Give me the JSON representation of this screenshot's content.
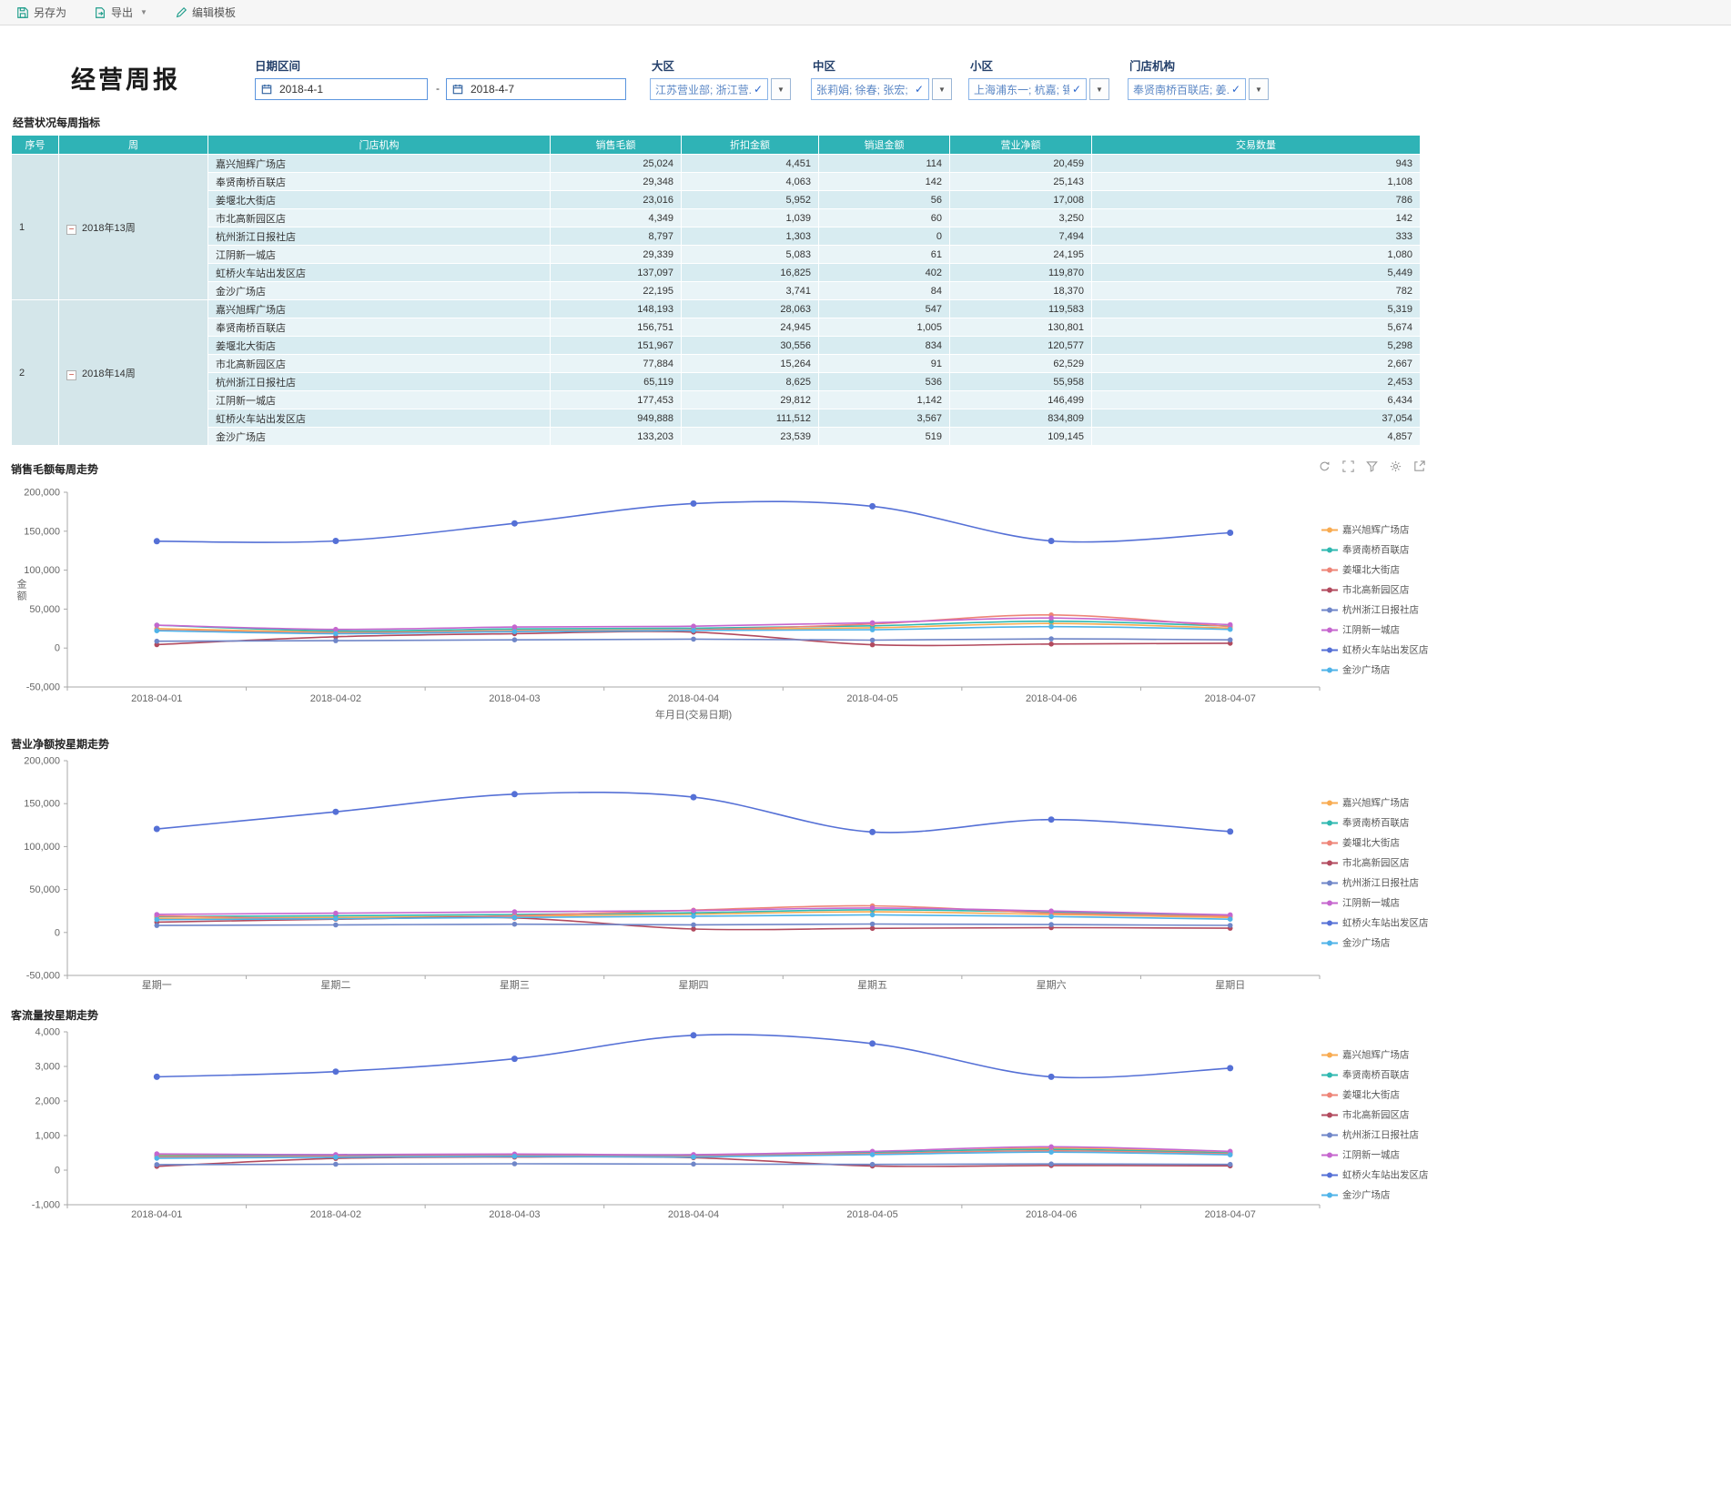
{
  "toolbar": {
    "save_as": "另存为",
    "export": "导出",
    "edit_template": "编辑模板"
  },
  "header": {
    "title": "经营周报",
    "filters": {
      "date_range_label": "日期区间",
      "date_from": "2018-4-1",
      "date_to": "2018-4-7",
      "date_separator": "-",
      "region_label": "大区",
      "region_value": "江苏营业部; 浙江营...",
      "midzone_label": "中区",
      "midzone_value": "张莉娟; 徐春; 张宏; ...",
      "subzone_label": "小区",
      "subzone_value": "上海浦东一; 杭嘉; 锡...",
      "store_label": "门店机构",
      "store_value": "奉贤南桥百联店; 姜..."
    }
  },
  "table": {
    "title": "经营状况每周指标",
    "collapse_icon": "−",
    "columns": [
      "序号",
      "周",
      "门店机构",
      "销售毛额",
      "折扣金额",
      "销退金额",
      "营业净额",
      "交易数量"
    ],
    "groups": [
      {
        "index": "1",
        "week": "2018年13周",
        "rows": [
          {
            "store": "嘉兴旭辉广场店",
            "gross": "25,024",
            "discount": "4,451",
            "returns": "114",
            "net": "20,459",
            "txns": "943"
          },
          {
            "store": "奉贤南桥百联店",
            "gross": "29,348",
            "discount": "4,063",
            "returns": "142",
            "net": "25,143",
            "txns": "1,108"
          },
          {
            "store": "姜堰北大街店",
            "gross": "23,016",
            "discount": "5,952",
            "returns": "56",
            "net": "17,008",
            "txns": "786"
          },
          {
            "store": "市北高新园区店",
            "gross": "4,349",
            "discount": "1,039",
            "returns": "60",
            "net": "3,250",
            "txns": "142"
          },
          {
            "store": "杭州浙江日报社店",
            "gross": "8,797",
            "discount": "1,303",
            "returns": "0",
            "net": "7,494",
            "txns": "333"
          },
          {
            "store": "江阴新一城店",
            "gross": "29,339",
            "discount": "5,083",
            "returns": "61",
            "net": "24,195",
            "txns": "1,080"
          },
          {
            "store": "虹桥火车站出发区店",
            "gross": "137,097",
            "discount": "16,825",
            "returns": "402",
            "net": "119,870",
            "txns": "5,449"
          },
          {
            "store": "金沙广场店",
            "gross": "22,195",
            "discount": "3,741",
            "returns": "84",
            "net": "18,370",
            "txns": "782"
          }
        ]
      },
      {
        "index": "2",
        "week": "2018年14周",
        "rows": [
          {
            "store": "嘉兴旭辉广场店",
            "gross": "148,193",
            "discount": "28,063",
            "returns": "547",
            "net": "119,583",
            "txns": "5,319"
          },
          {
            "store": "奉贤南桥百联店",
            "gross": "156,751",
            "discount": "24,945",
            "returns": "1,005",
            "net": "130,801",
            "txns": "5,674"
          },
          {
            "store": "姜堰北大街店",
            "gross": "151,967",
            "discount": "30,556",
            "returns": "834",
            "net": "120,577",
            "txns": "5,298"
          },
          {
            "store": "市北高新园区店",
            "gross": "77,884",
            "discount": "15,264",
            "returns": "91",
            "net": "62,529",
            "txns": "2,667"
          },
          {
            "store": "杭州浙江日报社店",
            "gross": "65,119",
            "discount": "8,625",
            "returns": "536",
            "net": "55,958",
            "txns": "2,453"
          },
          {
            "store": "江阴新一城店",
            "gross": "177,453",
            "discount": "29,812",
            "returns": "1,142",
            "net": "146,499",
            "txns": "6,434"
          },
          {
            "store": "虹桥火车站出发区店",
            "gross": "949,888",
            "discount": "111,512",
            "returns": "3,567",
            "net": "834,809",
            "txns": "37,054"
          },
          {
            "store": "金沙广场店",
            "gross": "133,203",
            "discount": "23,539",
            "returns": "519",
            "net": "109,145",
            "txns": "4,857"
          }
        ]
      }
    ]
  },
  "chart_data": [
    {
      "type": "line",
      "title": "销售毛额每周走势",
      "xlabel": "年月日(交易日期)",
      "ylabel": "金额",
      "x": [
        "2018-04-01",
        "2018-04-02",
        "2018-04-03",
        "2018-04-04",
        "2018-04-05",
        "2018-04-06",
        "2018-04-07"
      ],
      "ylim": [
        -50000,
        200000
      ],
      "ytick_step": 50000,
      "grid": false,
      "legend_position": "right",
      "series": [
        {
          "name": "嘉兴旭辉广场店",
          "color": "#f8ab51",
          "point_radius": 2.8,
          "values": [
            25024,
            20500,
            22500,
            23500,
            26000,
            31500,
            25500
          ]
        },
        {
          "name": "奉贤南桥百联店",
          "color": "#2fb8b0",
          "point_radius": 2.8,
          "values": [
            29348,
            22000,
            24500,
            25500,
            28500,
            34500,
            28000
          ]
        },
        {
          "name": "姜堰北大街店",
          "color": "#ee8477",
          "point_radius": 2.8,
          "values": [
            23016,
            19500,
            22000,
            23500,
            31000,
            42500,
            27500
          ]
        },
        {
          "name": "市北高新园区店",
          "color": "#b24a5e",
          "point_radius": 2.8,
          "values": [
            4349,
            14500,
            18500,
            20500,
            4200,
            5100,
            6200
          ]
        },
        {
          "name": "杭州浙江日报社店",
          "color": "#6f86c8",
          "point_radius": 2.8,
          "values": [
            8797,
            9500,
            10500,
            11500,
            10200,
            11800,
            10500
          ]
        },
        {
          "name": "江阴新一城店",
          "color": "#c566ce",
          "point_radius": 2.8,
          "values": [
            29339,
            24000,
            27000,
            28000,
            32500,
            38500,
            30000
          ]
        },
        {
          "name": "虹桥火车站出发区店",
          "color": "#5570d6",
          "point_radius": 3.5,
          "values": [
            137097,
            137500,
            160000,
            185500,
            182000,
            137500,
            148000
          ]
        },
        {
          "name": "金沙广场店",
          "color": "#4fb3e8",
          "point_radius": 2.8,
          "values": [
            22195,
            18500,
            21000,
            22500,
            23500,
            27500,
            24000
          ]
        }
      ]
    },
    {
      "type": "line",
      "title": "营业净额按星期走势",
      "xlabel": "",
      "ylabel": "",
      "x": [
        "星期一",
        "星期二",
        "星期三",
        "星期四",
        "星期五",
        "星期六",
        "星期日"
      ],
      "ylim": [
        -50000,
        200000
      ],
      "ytick_step": 50000,
      "grid": false,
      "legend_position": "right",
      "series": [
        {
          "name": "嘉兴旭辉广场店",
          "color": "#f8ab51",
          "point_radius": 2.8,
          "values": [
            16500,
            17500,
            19000,
            21500,
            24000,
            21000,
            17500
          ]
        },
        {
          "name": "奉贤南桥百联店",
          "color": "#2fb8b0",
          "point_radius": 2.8,
          "values": [
            18500,
            19500,
            21000,
            23000,
            26500,
            23500,
            19500
          ]
        },
        {
          "name": "姜堰北大街店",
          "color": "#ee8477",
          "point_radius": 2.8,
          "values": [
            19500,
            16000,
            19500,
            26000,
            31000,
            22500,
            19000
          ]
        },
        {
          "name": "市北高新园区店",
          "color": "#b24a5e",
          "point_radius": 2.8,
          "values": [
            12000,
            15500,
            17000,
            4000,
            4800,
            5600,
            5000
          ]
        },
        {
          "name": "杭州浙江日报社店",
          "color": "#6f86c8",
          "point_radius": 2.8,
          "values": [
            8200,
            8800,
            9600,
            8900,
            9800,
            9200,
            8300
          ]
        },
        {
          "name": "江阴新一城店",
          "color": "#c566ce",
          "point_radius": 2.8,
          "values": [
            21000,
            22500,
            24000,
            25500,
            28500,
            25000,
            20500
          ]
        },
        {
          "name": "虹桥火车站出发区店",
          "color": "#5570d6",
          "point_radius": 3.5,
          "values": [
            120500,
            140500,
            161000,
            157500,
            117000,
            131500,
            117500
          ]
        },
        {
          "name": "金沙广场店",
          "color": "#4fb3e8",
          "point_radius": 2.8,
          "values": [
            15000,
            16000,
            17500,
            19000,
            20500,
            18500,
            15500
          ]
        }
      ]
    },
    {
      "type": "line",
      "title": "客流量按星期走势",
      "xlabel": "",
      "ylabel": "",
      "x": [
        "2018-04-01",
        "2018-04-02",
        "2018-04-03",
        "2018-04-04",
        "2018-04-05",
        "2018-04-06",
        "2018-04-07"
      ],
      "ylim": [
        -1000,
        4000
      ],
      "ytick_step": 1000,
      "grid": false,
      "legend_position": "right",
      "series": [
        {
          "name": "嘉兴旭辉广场店",
          "color": "#f8ab51",
          "point_radius": 2.8,
          "values": [
            440,
            430,
            450,
            430,
            500,
            640,
            510
          ]
        },
        {
          "name": "奉贤南桥百联店",
          "color": "#2fb8b0",
          "point_radius": 2.8,
          "values": [
            410,
            420,
            440,
            420,
            520,
            600,
            495
          ]
        },
        {
          "name": "姜堰北大街店",
          "color": "#ee8477",
          "point_radius": 2.8,
          "values": [
            380,
            400,
            420,
            400,
            480,
            560,
            470
          ]
        },
        {
          "name": "市北高新园区店",
          "color": "#b24a5e",
          "point_radius": 2.8,
          "values": [
            110,
            340,
            380,
            360,
            120,
            135,
            125
          ]
        },
        {
          "name": "杭州浙江日报社店",
          "color": "#6f86c8",
          "point_radius": 2.8,
          "values": [
            160,
            170,
            185,
            175,
            165,
            180,
            165
          ]
        },
        {
          "name": "江阴新一城店",
          "color": "#c566ce",
          "point_radius": 2.8,
          "values": [
            470,
            450,
            465,
            450,
            545,
            675,
            545
          ]
        },
        {
          "name": "虹桥火车站出发区店",
          "color": "#5570d6",
          "point_radius": 3.5,
          "values": [
            2700,
            2850,
            3220,
            3900,
            3660,
            2700,
            2950
          ]
        },
        {
          "name": "金沙广场店",
          "color": "#4fb3e8",
          "point_radius": 2.8,
          "values": [
            345,
            375,
            400,
            380,
            450,
            520,
            445
          ]
        }
      ]
    }
  ],
  "colors": {
    "table_header": "#2fb3b6",
    "accent_blue": "#5a94de",
    "primary_line": "#5570d6"
  }
}
